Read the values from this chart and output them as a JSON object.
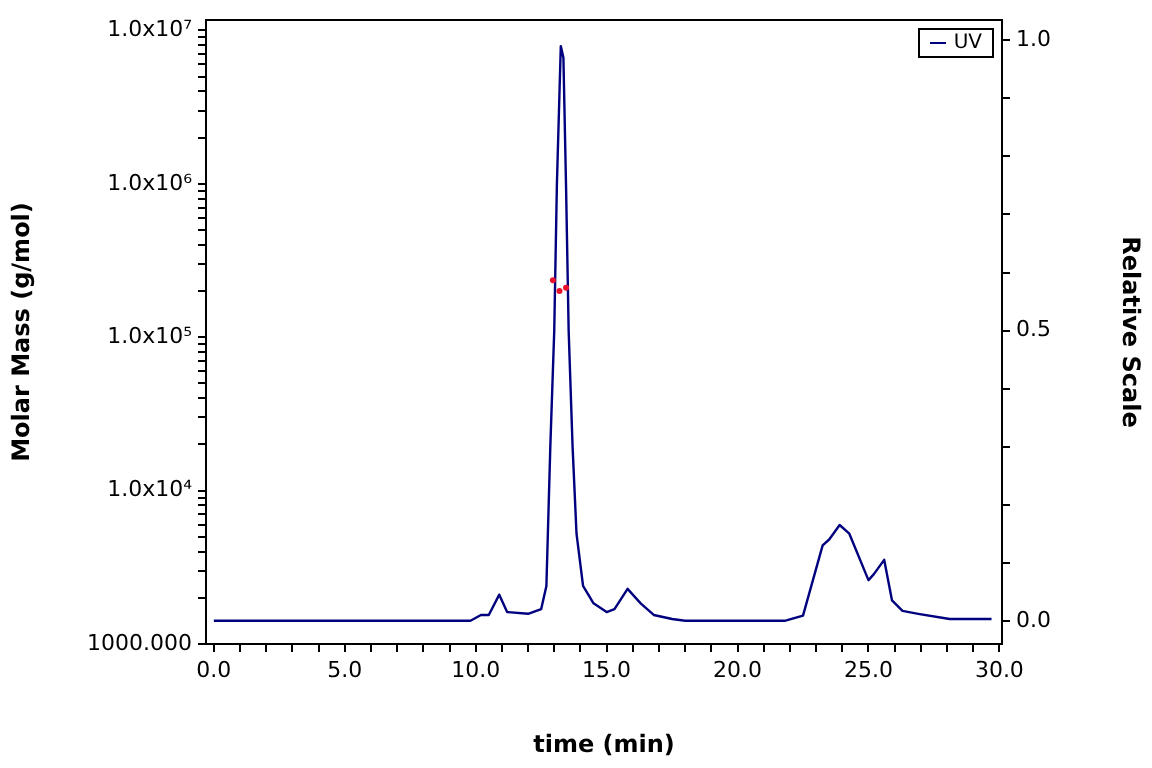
{
  "chart_data": {
    "type": "line",
    "xlabel": "time (min)",
    "ylabel": "Molar Mass (g/mol)",
    "y2label": "Relative Scale",
    "xlim": [
      -0.3,
      30.1
    ],
    "xticks": [
      {
        "value": 0,
        "label": "0.0"
      },
      {
        "value": 1,
        "label": null
      },
      {
        "value": 2,
        "label": null
      },
      {
        "value": 3,
        "label": null
      },
      {
        "value": 4,
        "label": null
      },
      {
        "value": 5,
        "label": "5.0"
      },
      {
        "value": 6,
        "label": null
      },
      {
        "value": 7,
        "label": null
      },
      {
        "value": 8,
        "label": null
      },
      {
        "value": 9,
        "label": null
      },
      {
        "value": 10,
        "label": "10.0"
      },
      {
        "value": 11,
        "label": null
      },
      {
        "value": 12,
        "label": null
      },
      {
        "value": 13,
        "label": null
      },
      {
        "value": 14,
        "label": null
      },
      {
        "value": 15,
        "label": "15.0"
      },
      {
        "value": 16,
        "label": null
      },
      {
        "value": 17,
        "label": null
      },
      {
        "value": 18,
        "label": null
      },
      {
        "value": 19,
        "label": null
      },
      {
        "value": 20,
        "label": "20.0"
      },
      {
        "value": 21,
        "label": null
      },
      {
        "value": 22,
        "label": null
      },
      {
        "value": 23,
        "label": null
      },
      {
        "value": 24,
        "label": null
      },
      {
        "value": 25,
        "label": "25.0"
      },
      {
        "value": 26,
        "label": null
      },
      {
        "value": 27,
        "label": null
      },
      {
        "value": 28,
        "label": null
      },
      {
        "value": 29,
        "label": null
      },
      {
        "value": 30,
        "label": "30.0"
      }
    ],
    "ylim": [
      1000,
      11700000
    ],
    "yticks": [
      {
        "value": 1000,
        "label": "1000.000"
      },
      {
        "value": 2000,
        "label": null
      },
      {
        "value": 3000,
        "label": null
      },
      {
        "value": 4000,
        "label": null
      },
      {
        "value": 5000,
        "label": null
      },
      {
        "value": 6000,
        "label": null
      },
      {
        "value": 7000,
        "label": null
      },
      {
        "value": 8000,
        "label": null
      },
      {
        "value": 9000,
        "label": null
      },
      {
        "value": 10000,
        "label": "1.0x10⁴"
      },
      {
        "value": 20000,
        "label": null
      },
      {
        "value": 30000,
        "label": null
      },
      {
        "value": 40000,
        "label": null
      },
      {
        "value": 50000,
        "label": null
      },
      {
        "value": 60000,
        "label": null
      },
      {
        "value": 70000,
        "label": null
      },
      {
        "value": 80000,
        "label": null
      },
      {
        "value": 90000,
        "label": null
      },
      {
        "value": 100000,
        "label": "1.0x10⁵"
      },
      {
        "value": 200000,
        "label": null
      },
      {
        "value": 300000,
        "label": null
      },
      {
        "value": 400000,
        "label": null
      },
      {
        "value": 500000,
        "label": null
      },
      {
        "value": 600000,
        "label": null
      },
      {
        "value": 700000,
        "label": null
      },
      {
        "value": 800000,
        "label": null
      },
      {
        "value": 900000,
        "label": null
      },
      {
        "value": 1000000,
        "label": "1.0x10⁶"
      },
      {
        "value": 2000000,
        "label": null
      },
      {
        "value": 3000000,
        "label": null
      },
      {
        "value": 4000000,
        "label": null
      },
      {
        "value": 5000000,
        "label": null
      },
      {
        "value": 6000000,
        "label": null
      },
      {
        "value": 7000000,
        "label": null
      },
      {
        "value": 8000000,
        "label": null
      },
      {
        "value": 9000000,
        "label": null
      },
      {
        "value": 10000000,
        "label": "1.0x10⁷"
      }
    ],
    "y2lim": [
      -0.04,
      1.035
    ],
    "y2ticks": [
      {
        "value": 0,
        "label": "0.0"
      },
      {
        "value": 0.1,
        "label": null
      },
      {
        "value": 0.2,
        "label": null
      },
      {
        "value": 0.3,
        "label": null
      },
      {
        "value": 0.4,
        "label": null
      },
      {
        "value": 0.5,
        "label": "0.5"
      },
      {
        "value": 0.6,
        "label": null
      },
      {
        "value": 0.7,
        "label": null
      },
      {
        "value": 0.8,
        "label": null
      },
      {
        "value": 0.9,
        "label": null
      },
      {
        "value": 1,
        "label": "1.0"
      }
    ],
    "log": "y",
    "grid": false,
    "legend": "top right",
    "marker": "none",
    "line_style": "solid",
    "series": [
      {
        "name": "UV",
        "color": "#00007f",
        "axis": "y2",
        "x": [
          0,
          9.8,
          10.2,
          10.5,
          10.9,
          11.2,
          12.0,
          12.5,
          12.7,
          12.85,
          13.0,
          13.1,
          13.25,
          13.35,
          13.45,
          13.55,
          13.7,
          13.85,
          14.1,
          14.5,
          15.0,
          15.3,
          15.8,
          16.3,
          16.8,
          17.5,
          18.0,
          21.8,
          22.5,
          23.25,
          23.5,
          23.9,
          24.27,
          25.0,
          25.2,
          25.6,
          25.9,
          26.3,
          26.9,
          28.1,
          29.7
        ],
        "values": [
          0,
          0,
          0.01,
          0.01,
          0.045,
          0.015,
          0.012,
          0.02,
          0.06,
          0.3,
          0.5,
          0.75,
          0.99,
          0.97,
          0.75,
          0.5,
          0.3,
          0.15,
          0.06,
          0.03,
          0.015,
          0.02,
          0.055,
          0.03,
          0.01,
          0.003,
          0,
          0,
          0.009,
          0.13,
          0.14,
          0.165,
          0.15,
          0.07,
          0.08,
          0.105,
          0.035,
          0.017,
          0.012,
          0.003,
          0.003
        ]
      },
      {
        "type": "scatter",
        "marker": "circle",
        "color": "#e8102a",
        "x": [
          12.95,
          13.2,
          13.45
        ],
        "values": [
          235000,
          200000,
          210000
        ]
      }
    ]
  }
}
